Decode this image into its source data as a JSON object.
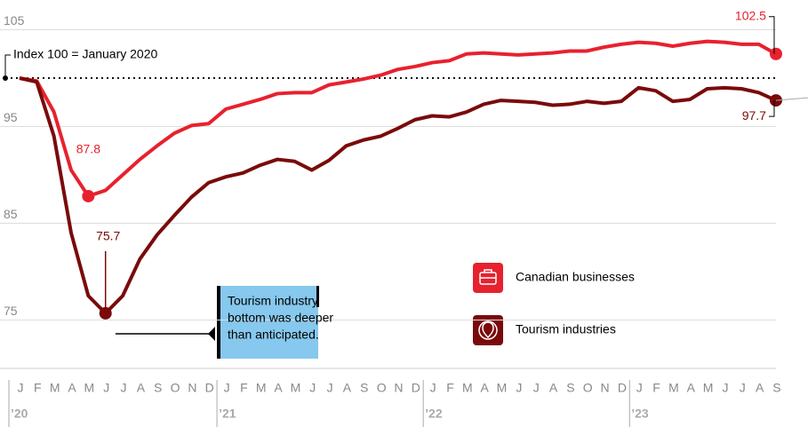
{
  "chart_data": {
    "type": "line",
    "reference": {
      "value": 100,
      "label": "Index 100 = January 2020"
    },
    "annotation": [
      "Tourism industry",
      "bottom was deeper",
      "than anticipated."
    ],
    "categories": [
      "J",
      "F",
      "M",
      "A",
      "M",
      "J",
      "J",
      "A",
      "S",
      "O",
      "N",
      "D",
      "J",
      "F",
      "M",
      "A",
      "M",
      "J",
      "J",
      "A",
      "S",
      "O",
      "N",
      "D",
      "J",
      "F",
      "M",
      "A",
      "M",
      "J",
      "J",
      "A",
      "S",
      "O",
      "N",
      "D",
      "J",
      "F",
      "M",
      "A",
      "M",
      "J",
      "J",
      "A",
      "S"
    ],
    "year_labels": [
      "’20",
      "’21",
      "’22",
      "’23"
    ],
    "series": [
      {
        "name": "Canadian businesses",
        "color": "#e8212e",
        "values": [
          100,
          99.7,
          96.5,
          90.5,
          87.8,
          88.4,
          90.0,
          91.6,
          93.0,
          94.3,
          95.1,
          95.3,
          96.8,
          97.3,
          97.8,
          98.4,
          98.5,
          98.5,
          99.3,
          99.6,
          99.9,
          100.3,
          100.9,
          101.2,
          101.6,
          101.8,
          102.5,
          102.6,
          102.5,
          102.4,
          102.5,
          102.6,
          102.8,
          102.8,
          103.2,
          103.5,
          103.7,
          103.6,
          103.3,
          103.6,
          103.8,
          103.7,
          103.5,
          103.5,
          102.5
        ]
      },
      {
        "name": "Tourism industries",
        "color": "#7a0a0a",
        "values": [
          100,
          99.6,
          94,
          84,
          77.5,
          75.7,
          77.5,
          81.3,
          83.8,
          85.8,
          87.7,
          89.2,
          89.8,
          90.2,
          91.0,
          91.6,
          91.4,
          90.5,
          91.5,
          93.0,
          93.6,
          94.0,
          94.8,
          95.7,
          96.1,
          96.0,
          96.5,
          97.3,
          97.7,
          97.6,
          97.5,
          97.2,
          97.3,
          97.6,
          97.4,
          97.6,
          99.0,
          98.7,
          97.6,
          97.8,
          98.9,
          99.0,
          98.9,
          98.5,
          97.7
        ]
      }
    ],
    "ylim": [
      70,
      108
    ],
    "yticks": [
      75,
      85,
      95,
      105
    ],
    "grid": true
  }
}
